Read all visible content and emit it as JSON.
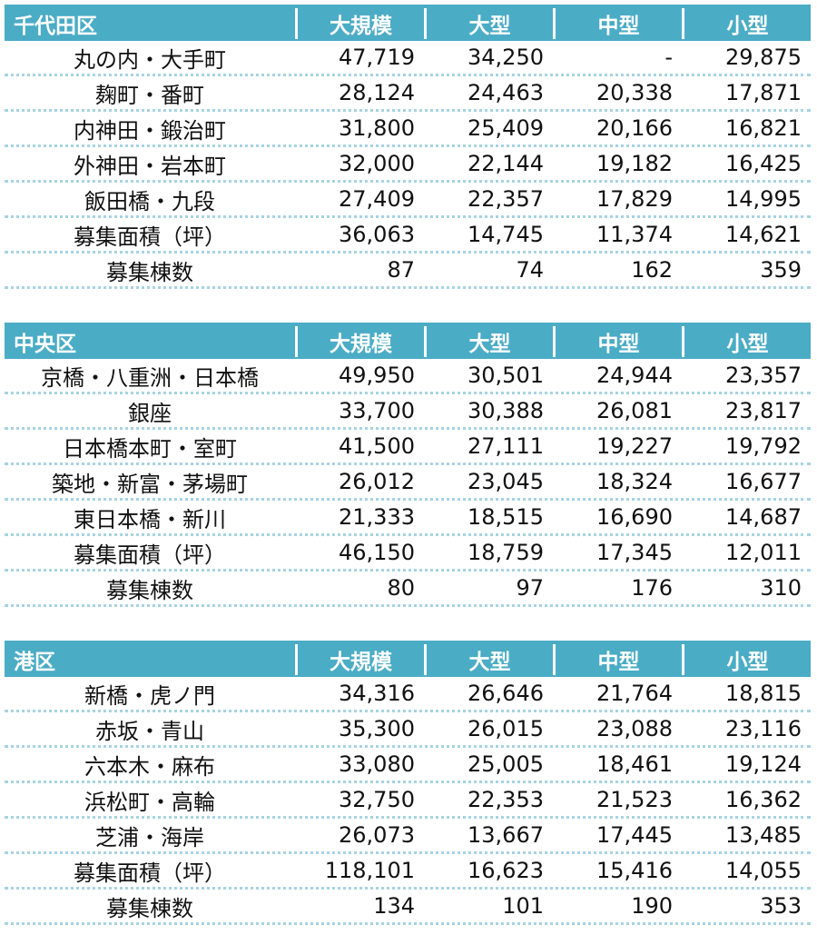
{
  "sections": [
    {
      "title": "千代田区",
      "columns": [
        "大規模",
        "大型",
        "中型",
        "小型"
      ],
      "rows": [
        [
          "丸の内・大手町",
          "47,719",
          "34,250",
          "-",
          "29,875"
        ],
        [
          "麹町・番町",
          "28,124",
          "24,463",
          "20,338",
          "17,871"
        ],
        [
          "内神田・鍛治町",
          "31,800",
          "25,409",
          "20,166",
          "16,821"
        ],
        [
          "外神田・岩本町",
          "32,000",
          "22,144",
          "19,182",
          "16,425"
        ],
        [
          "飯田橋・九段",
          "27,409",
          "22,357",
          "17,829",
          "14,995"
        ],
        [
          "募集面積（坪）",
          "36,063",
          "14,745",
          "11,374",
          "14,621"
        ],
        [
          "募集棟数",
          "87",
          "74",
          "162",
          "359"
        ]
      ]
    },
    {
      "title": "中央区",
      "columns": [
        "大規模",
        "大型",
        "中型",
        "小型"
      ],
      "rows": [
        [
          "京橋・八重洲・日本橋",
          "49,950",
          "30,501",
          "24,944",
          "23,357"
        ],
        [
          "銀座",
          "33,700",
          "30,388",
          "26,081",
          "23,817"
        ],
        [
          "日本橋本町・室町",
          "41,500",
          "27,111",
          "19,227",
          "19,792"
        ],
        [
          "築地・新富・茅場町",
          "26,012",
          "23,045",
          "18,324",
          "16,677"
        ],
        [
          "東日本橋・新川",
          "21,333",
          "18,515",
          "16,690",
          "14,687"
        ],
        [
          "募集面積（坪）",
          "46,150",
          "18,759",
          "17,345",
          "12,011"
        ],
        [
          "募集棟数",
          "80",
          "97",
          "176",
          "310"
        ]
      ]
    },
    {
      "title": "港区",
      "columns": [
        "大規模",
        "大型",
        "中型",
        "小型"
      ],
      "rows": [
        [
          "新橋・虎ノ門",
          "34,316",
          "26,646",
          "21,764",
          "18,815"
        ],
        [
          "赤坂・青山",
          "35,300",
          "26,015",
          "23,088",
          "23,116"
        ],
        [
          "六本木・麻布",
          "33,080",
          "25,005",
          "18,461",
          "19,124"
        ],
        [
          "浜松町・高輪",
          "32,750",
          "22,353",
          "21,523",
          "16,362"
        ],
        [
          "芝浦・海岸",
          "26,073",
          "13,667",
          "17,445",
          "13,485"
        ],
        [
          "募集面積（坪）",
          "118,101",
          "16,623",
          "15,416",
          "14,055"
        ],
        [
          "募集棟数",
          "134",
          "101",
          "190",
          "353"
        ]
      ]
    }
  ]
}
